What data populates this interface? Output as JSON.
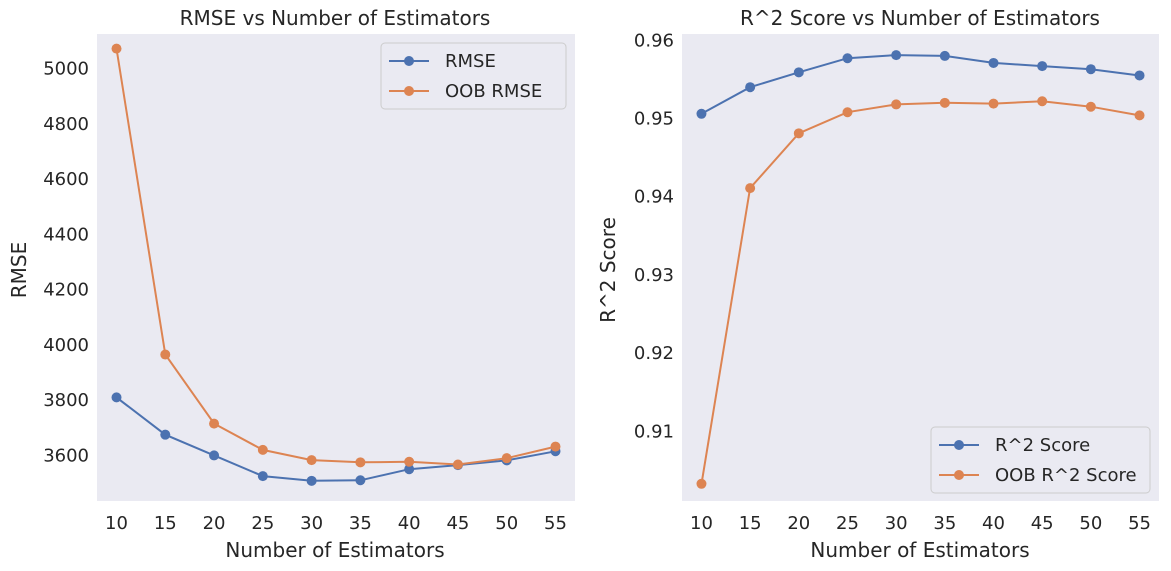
{
  "chart_data": [
    {
      "type": "line",
      "title": "RMSE vs Number of Estimators",
      "xlabel": "Number of Estimators",
      "ylabel": "RMSE",
      "x": [
        10,
        15,
        20,
        25,
        30,
        35,
        40,
        45,
        50,
        55
      ],
      "xticks": [
        "10",
        "15",
        "20",
        "25",
        "30",
        "35",
        "40",
        "45",
        "50",
        "55"
      ],
      "yticks": [
        "3600",
        "3800",
        "4000",
        "4200",
        "4400",
        "4600",
        "4800",
        "5000"
      ],
      "ytick_values": [
        3600,
        3800,
        4000,
        4200,
        4400,
        4600,
        4800,
        5000
      ],
      "ylim": [
        3435,
        5125
      ],
      "xlim": [
        8,
        57
      ],
      "grid": false,
      "legend_position": "top-right",
      "series": [
        {
          "name": "RMSE",
          "color": "#4c72b0",
          "values": [
            3810,
            3675,
            3600,
            3525,
            3508,
            3510,
            3550,
            3565,
            3582,
            3615
          ]
        },
        {
          "name": "OOB RMSE",
          "color": "#dd8452",
          "values": [
            5072,
            3965,
            3715,
            3620,
            3583,
            3575,
            3577,
            3567,
            3590,
            3632
          ]
        }
      ]
    },
    {
      "type": "line",
      "title": "R^2 Score vs Number of Estimators",
      "xlabel": "Number of Estimators",
      "ylabel": "R^2 Score",
      "x": [
        10,
        15,
        20,
        25,
        30,
        35,
        40,
        45,
        50,
        55
      ],
      "xticks": [
        "10",
        "15",
        "20",
        "25",
        "30",
        "35",
        "40",
        "45",
        "50",
        "55"
      ],
      "yticks": [
        "0.91",
        "0.92",
        "0.93",
        "0.94",
        "0.95",
        "0.96"
      ],
      "ytick_values": [
        0.91,
        0.92,
        0.93,
        0.94,
        0.95,
        0.96
      ],
      "ylim": [
        0.9011,
        0.9608
      ],
      "xlim": [
        8,
        57
      ],
      "grid": false,
      "legend_position": "bottom-right",
      "series": [
        {
          "name": "R^2 Score",
          "color": "#4c72b0",
          "values": [
            0.9506,
            0.954,
            0.9559,
            0.9577,
            0.9581,
            0.958,
            0.9571,
            0.9567,
            0.9563,
            0.9555
          ]
        },
        {
          "name": "OOB R^2 Score",
          "color": "#dd8452",
          "values": [
            0.9033,
            0.9411,
            0.9481,
            0.9508,
            0.9518,
            0.952,
            0.9519,
            0.9522,
            0.9515,
            0.9504
          ]
        }
      ]
    }
  ]
}
